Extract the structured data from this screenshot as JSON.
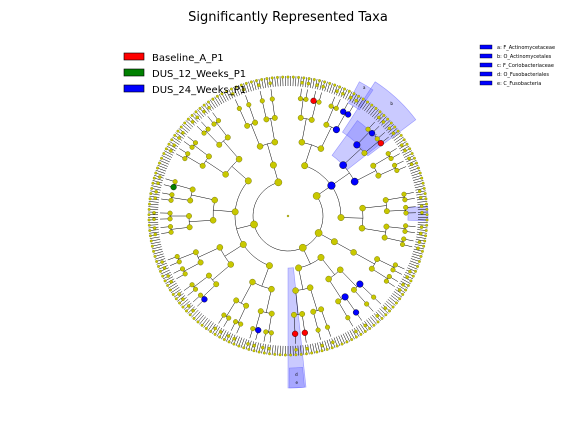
{
  "title": "Significantly Represented Taxa",
  "legend": [
    {
      "label": "Baseline_A_P1",
      "color": "#ff0000"
    },
    {
      "label": "DUS_12_Weeks_P1",
      "color": "#008000"
    },
    {
      "label": "DUS_24_Weeks_P1",
      "color": "#0000ff"
    }
  ],
  "clade_legend": [
    {
      "label": "a: F_Actinomycetaceae",
      "color": "#0000ff"
    },
    {
      "label": "b: O_Actinomycetales",
      "color": "#0000ff"
    },
    {
      "label": "c: F_Coriobacteriaceae",
      "color": "#0000ff"
    },
    {
      "label": "d: O_Fusobacteriales",
      "color": "#0000ff"
    },
    {
      "label": "e: C_Fusobacteria",
      "color": "#0000ff"
    }
  ],
  "clade_letters": [
    "a",
    "b",
    "c",
    "d",
    "e"
  ],
  "colors": {
    "node_default": "#c8c800",
    "node_edge": "#666600",
    "highlight_fill": "#6666ff"
  }
}
